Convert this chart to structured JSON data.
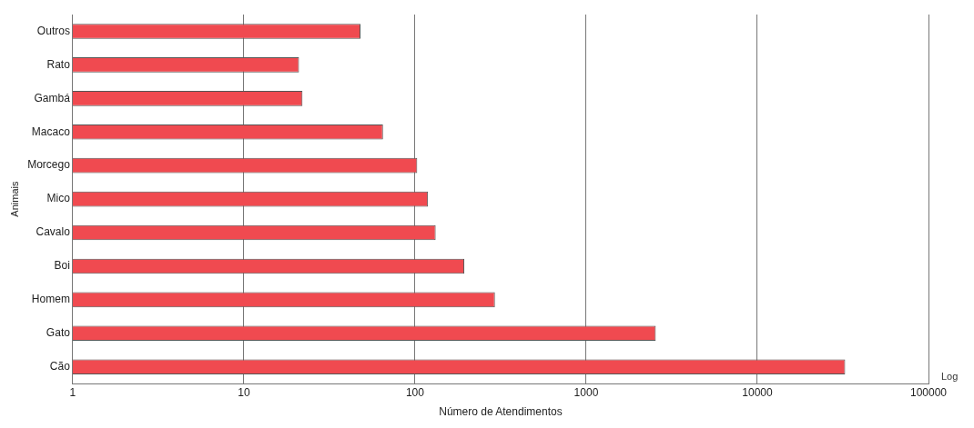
{
  "chart_data": {
    "type": "bar",
    "orientation": "horizontal",
    "log": "x",
    "categories": [
      "Outros",
      "Rato",
      "Gambá",
      "Macaco",
      "Morcego",
      "Mico",
      "Cavalo",
      "Boi",
      "Homem",
      "Gato",
      "Cão"
    ],
    "values": [
      48,
      21,
      22,
      65,
      103,
      119,
      132,
      194,
      293,
      2550,
      32600
    ],
    "color": "#f04a50",
    "xlabel": "Número de Atendimentos",
    "ylabel": "Animais",
    "xlim": [
      1,
      100000
    ],
    "xticks": [
      1,
      10,
      100,
      1000,
      10000,
      100000
    ],
    "grid": "x",
    "legend": false,
    "annotations": [
      "Log"
    ]
  }
}
